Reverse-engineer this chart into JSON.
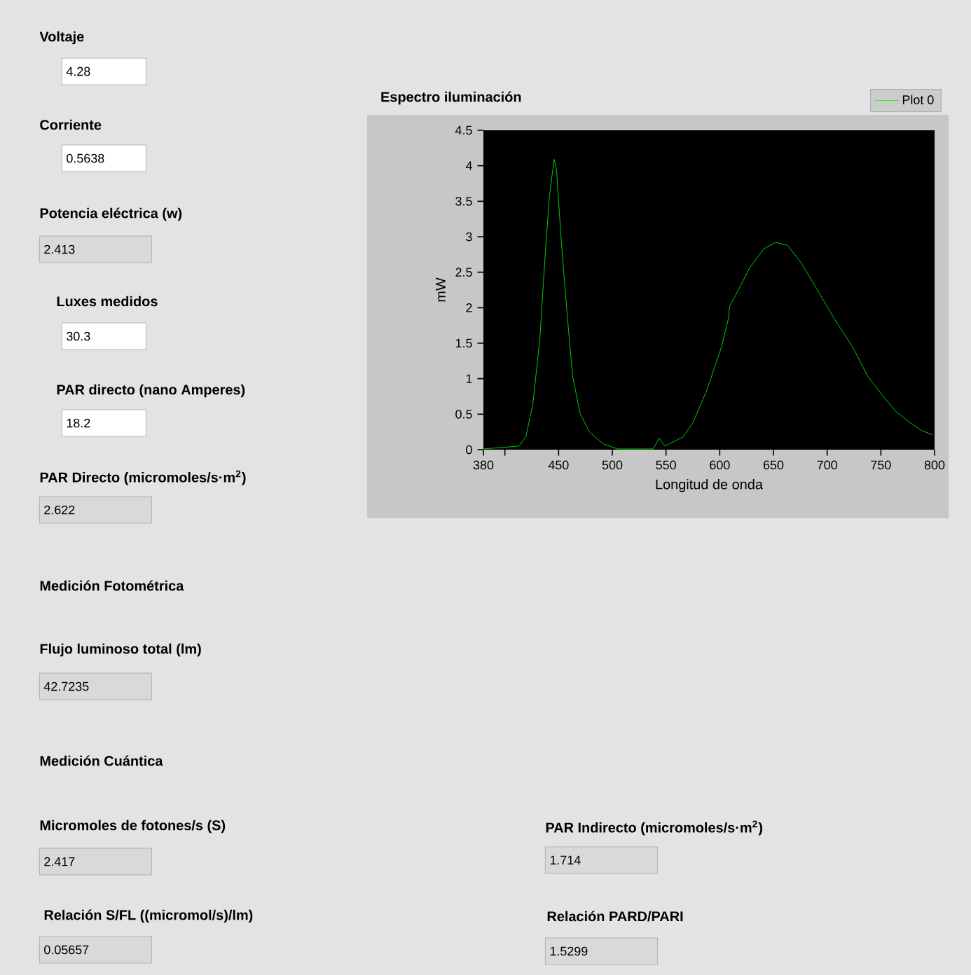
{
  "chart_data": [
    {
      "type": "line",
      "title": "Espectro iluminación",
      "xlabel": "Longitud de onda",
      "ylabel": "mW",
      "x": [
        380,
        413,
        419.5,
        426,
        432.6,
        437,
        441.4,
        445.8,
        448,
        452.4,
        457.6,
        463,
        470,
        478.7,
        491.8,
        505,
        538,
        543.6,
        548.9,
        566,
        575,
        588,
        601.5,
        608,
        609.4,
        614.6,
        627.8,
        641,
        652,
        663,
        676,
        689,
        706.8,
        724,
        737.5,
        750.6,
        763.8,
        777,
        788,
        798
      ],
      "series": [
        {
          "name": "Plot 0",
          "color": "#00ff00",
          "values": [
            0.01,
            0.05,
            0.18,
            0.64,
            1.57,
            2.63,
            3.56,
            4.09,
            3.96,
            2.96,
            1.97,
            1.04,
            0.51,
            0.25,
            0.08,
            0.01,
            0.01,
            0.16,
            0.05,
            0.18,
            0.38,
            0.84,
            1.44,
            1.84,
            2.03,
            2.17,
            2.56,
            2.83,
            2.92,
            2.88,
            2.63,
            2.3,
            1.84,
            1.44,
            1.04,
            0.78,
            0.54,
            0.38,
            0.27,
            0.21
          ]
        }
      ],
      "xlim": [
        380,
        800
      ],
      "ylim": [
        0,
        4.5
      ],
      "xticks": [
        380,
        {
          "value": 400,
          "label": null
        },
        450,
        500,
        550,
        600,
        650,
        700,
        750,
        800
      ],
      "yticks": [
        0,
        0.5,
        1,
        1.5,
        2,
        2.5,
        3,
        3.5,
        4,
        4.5
      ],
      "legend": "top right"
    },
    {
      "type": "other",
      "annotations": [
        "Voltaje",
        "4.28",
        "Corriente",
        "0.5638",
        "Potencia eléctrica (w)",
        "2.413",
        "Luxes medidos",
        "30.3",
        "PAR directo (nano Amperes)",
        "18.2",
        "PAR Directo (micromoles/s·m$^{2}$)",
        "2.622",
        "Medición Fotométrica",
        "Flujo luminoso total (lm)",
        "42.7235",
        "Medición Cuántica",
        "Micromoles de fotones/s (S)",
        "2.417",
        "PAR Indirecto (micromoles/s·m$^{2}$)",
        "1.714",
        "Relación S/FL ((micromol/s)/lm)",
        "0.05657",
        "Relación PARD/PARI",
        "1.5299"
      ]
    }
  ]
}
